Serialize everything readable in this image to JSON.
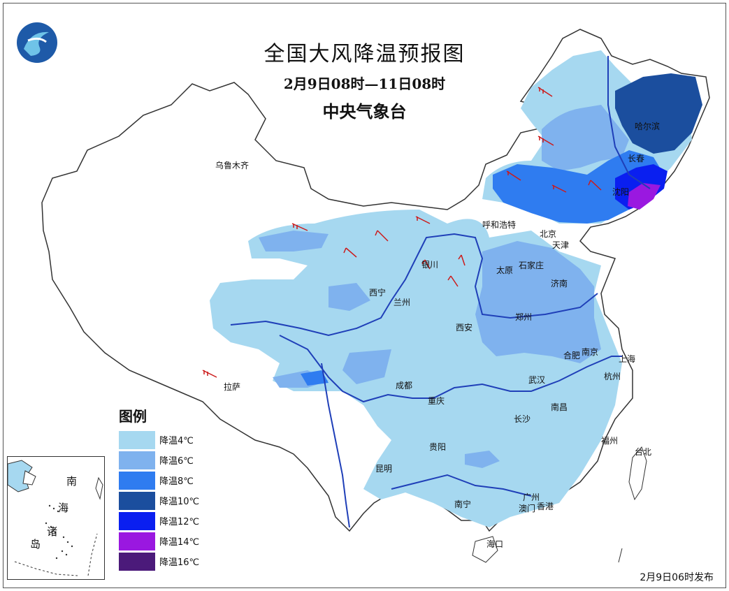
{
  "header": {
    "title": "全国大风降温预报图",
    "subtitle": "2月9日08时—11日08时",
    "issuer": "中央气象台"
  },
  "logo": {
    "icon": "cma-logo-icon",
    "colors": [
      "#1e5aa8",
      "#6fc3e8"
    ]
  },
  "legend": {
    "title": "图例",
    "items": [
      {
        "label": "降温4℃",
        "color": "#a6d8f0"
      },
      {
        "label": "降温6℃",
        "color": "#7fb2ee"
      },
      {
        "label": "降温8℃",
        "color": "#2f7cf0"
      },
      {
        "label": "降温10℃",
        "color": "#1b4e9e"
      },
      {
        "label": "降温12℃",
        "color": "#0a1ff0"
      },
      {
        "label": "降温14℃",
        "color": "#9a18e0"
      },
      {
        "label": "降温16℃",
        "color": "#4b1a7a"
      }
    ]
  },
  "cities": [
    "乌鲁木齐",
    "哈尔滨",
    "长春",
    "沈阳",
    "呼和浩特",
    "北京",
    "天津",
    "银川",
    "石家庄",
    "太原",
    "济南",
    "西宁",
    "兰州",
    "郑州",
    "西安",
    "合肥",
    "南京",
    "上海",
    "拉萨",
    "成都",
    "武汉",
    "杭州",
    "重庆",
    "南昌",
    "长沙",
    "贵阳",
    "福州",
    "台北",
    "昆明",
    "广州",
    "南宁",
    "澳门",
    "香港",
    "海口"
  ],
  "inset": {
    "labels": [
      "南",
      "海",
      "诸",
      "岛"
    ]
  },
  "release_note": "2月9日06时发布"
}
